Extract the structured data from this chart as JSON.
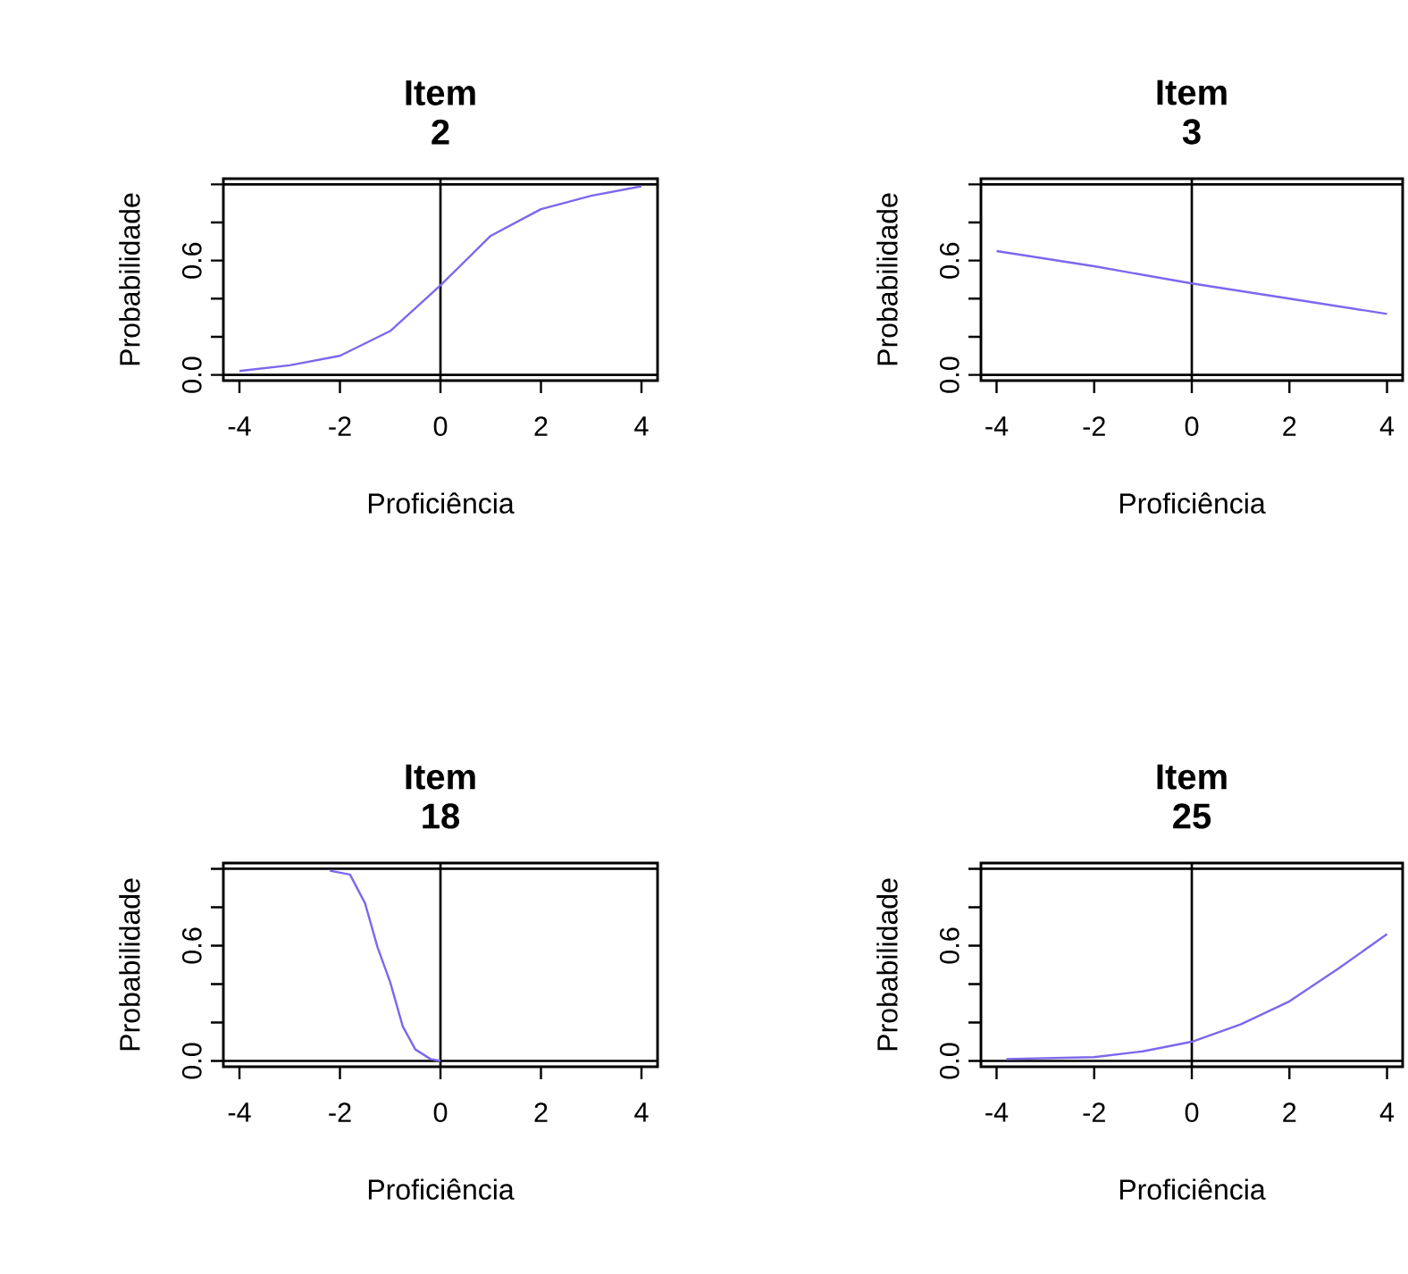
{
  "chart_data": [
    {
      "type": "line",
      "title": "Item 2",
      "xlabel": "Proficiência",
      "ylabel": "Probabilidade",
      "xlim": [
        -4.32,
        4.32
      ],
      "ylim": [
        -0.03,
        1.03
      ],
      "xticks": [
        -4,
        -2,
        0,
        2,
        4
      ],
      "yticks": [
        {
          "value": 0,
          "label": "0.0"
        },
        {
          "value": 0.2,
          "label": null
        },
        {
          "value": 0.4,
          "label": null
        },
        {
          "value": 0.6,
          "label": "0.6"
        },
        {
          "value": 0.8,
          "label": null
        },
        {
          "value": 1,
          "label": null
        }
      ],
      "ref_lines": [
        {
          "axis": "y",
          "value": 0,
          "color": "#000000"
        },
        {
          "axis": "y",
          "value": 1,
          "color": "#000000"
        },
        {
          "axis": "x",
          "value": 0,
          "color": "#000000"
        }
      ],
      "series": [
        {
          "color": "#7b68ee",
          "x": [
            -4,
            -3,
            -2,
            -1,
            0,
            1,
            2,
            3,
            4
          ],
          "values": [
            0.02,
            0.05,
            0.1,
            0.23,
            0.47,
            0.73,
            0.87,
            0.94,
            0.99
          ]
        }
      ]
    },
    {
      "type": "line",
      "title": "Item 3",
      "xlabel": "Proficiência",
      "ylabel": "Probabilidade",
      "xlim": [
        -4.32,
        4.32
      ],
      "ylim": [
        -0.03,
        1.03
      ],
      "xticks": [
        -4,
        -2,
        0,
        2,
        4
      ],
      "yticks": [
        {
          "value": 0,
          "label": "0.0"
        },
        {
          "value": 0.2,
          "label": null
        },
        {
          "value": 0.4,
          "label": null
        },
        {
          "value": 0.6,
          "label": "0.6"
        },
        {
          "value": 0.8,
          "label": null
        },
        {
          "value": 1,
          "label": null
        }
      ],
      "ref_lines": [
        {
          "axis": "y",
          "value": 0,
          "color": "#000000"
        },
        {
          "axis": "y",
          "value": 1,
          "color": "#000000"
        },
        {
          "axis": "x",
          "value": 0,
          "color": "#000000"
        }
      ],
      "series": [
        {
          "color": "#7b68ee",
          "x": [
            -4,
            -2,
            0,
            2,
            4
          ],
          "values": [
            0.65,
            0.57,
            0.48,
            0.4,
            0.32
          ]
        }
      ]
    },
    {
      "type": "line",
      "title": "Item 18",
      "xlabel": "Proficiência",
      "ylabel": "Probabilidade",
      "xlim": [
        -4.32,
        4.32
      ],
      "ylim": [
        -0.03,
        1.03
      ],
      "xticks": [
        -4,
        -2,
        0,
        2,
        4
      ],
      "yticks": [
        {
          "value": 0,
          "label": "0.0"
        },
        {
          "value": 0.2,
          "label": null
        },
        {
          "value": 0.4,
          "label": null
        },
        {
          "value": 0.6,
          "label": "0.6"
        },
        {
          "value": 0.8,
          "label": null
        },
        {
          "value": 1,
          "label": null
        }
      ],
      "ref_lines": [
        {
          "axis": "y",
          "value": 0,
          "color": "#000000"
        },
        {
          "axis": "y",
          "value": 1,
          "color": "#000000"
        },
        {
          "axis": "x",
          "value": 0,
          "color": "#000000"
        }
      ],
      "series": [
        {
          "color": "#7b68ee",
          "x": [
            -2.2,
            -1.8,
            -1.5,
            -1.25,
            -1,
            -0.75,
            -0.5,
            -0.2,
            0
          ],
          "values": [
            0.99,
            0.97,
            0.82,
            0.59,
            0.41,
            0.18,
            0.06,
            0.01,
            0.0
          ]
        }
      ]
    },
    {
      "type": "line",
      "title": "Item 25",
      "xlabel": "Proficiência",
      "ylabel": "Probabilidade",
      "xlim": [
        -4.32,
        4.32
      ],
      "ylim": [
        -0.03,
        1.03
      ],
      "xticks": [
        -4,
        -2,
        0,
        2,
        4
      ],
      "yticks": [
        {
          "value": 0,
          "label": "0.0"
        },
        {
          "value": 0.2,
          "label": null
        },
        {
          "value": 0.4,
          "label": null
        },
        {
          "value": 0.6,
          "label": "0.6"
        },
        {
          "value": 0.8,
          "label": null
        },
        {
          "value": 1,
          "label": null
        }
      ],
      "ref_lines": [
        {
          "axis": "y",
          "value": 0,
          "color": "#000000"
        },
        {
          "axis": "y",
          "value": 1,
          "color": "#000000"
        },
        {
          "axis": "x",
          "value": 0,
          "color": "#000000"
        }
      ],
      "series": [
        {
          "color": "#7b68ee",
          "x": [
            -3.8,
            -2,
            -1,
            0,
            1,
            2,
            3,
            4
          ],
          "values": [
            0.01,
            0.02,
            0.05,
            0.1,
            0.19,
            0.31,
            0.48,
            0.66
          ]
        }
      ]
    }
  ]
}
